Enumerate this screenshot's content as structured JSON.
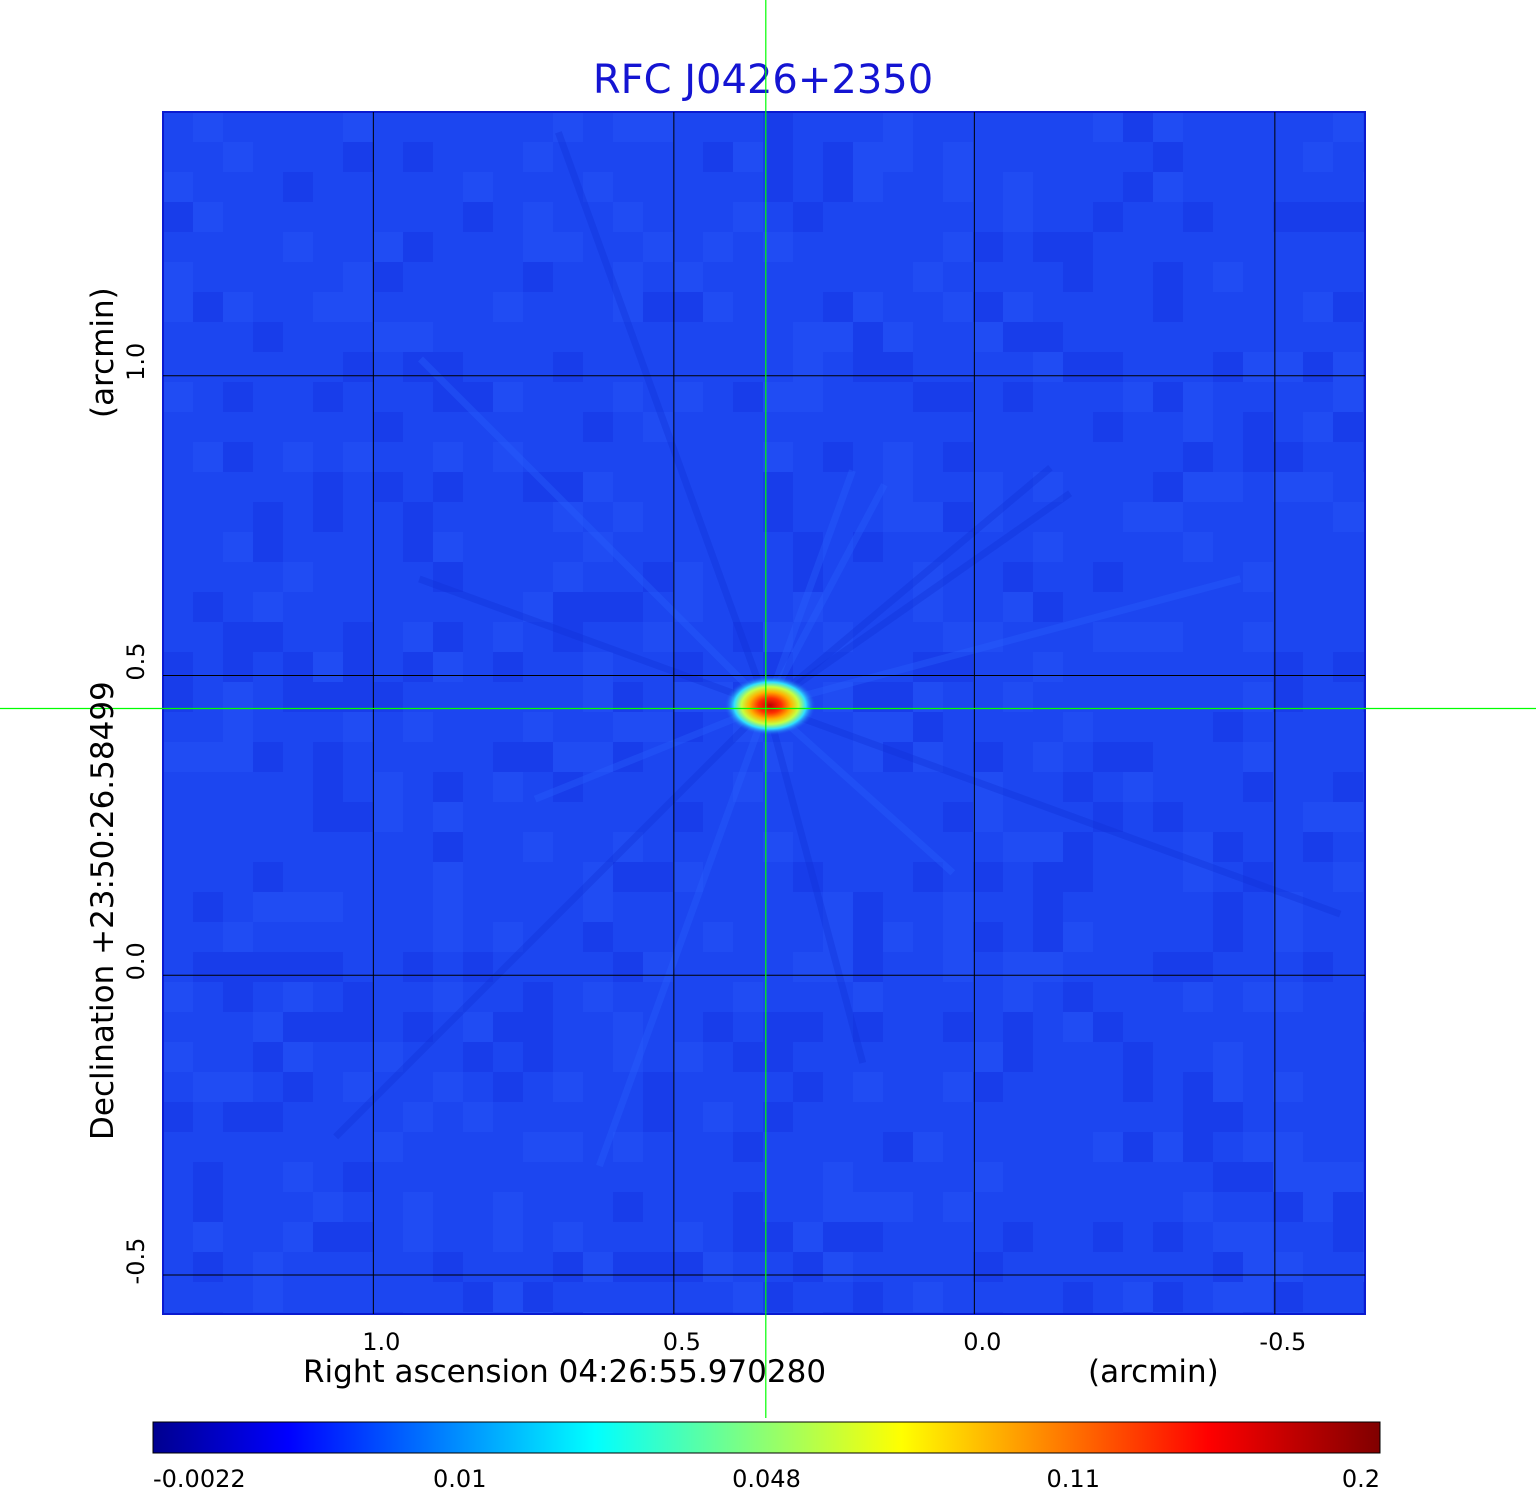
{
  "chart_data": {
    "type": "heatmap",
    "title": "RFC J0426+2350",
    "xlabel": "Right ascension  04:26:55.970280",
    "xunit": "(arcmin)",
    "ylabel": "Declination  +23:50:26.58499",
    "yunit": "(arcmin)",
    "xlim": [
      1.35,
      -0.65
    ],
    "ylim": [
      -0.565,
      1.44
    ],
    "x_ticks": [
      1.0,
      0.5,
      0.0,
      -0.5
    ],
    "x_tick_labels": [
      "1.0",
      "0.5",
      "0.0",
      "-0.5"
    ],
    "y_ticks": [
      1.0,
      0.5,
      0.0,
      -0.5
    ],
    "y_tick_labels": [
      "1.0",
      "0.5",
      "0.0",
      "-0.5"
    ],
    "grid": true,
    "crosshair": {
      "x": 0.347,
      "y": 0.445,
      "color": "#00ff00"
    },
    "peak": {
      "x": 0.345,
      "y": 0.45,
      "value": 0.2
    },
    "colormap": "jet",
    "colorbar": {
      "ticks": [
        -0.0022,
        0.01,
        0.048,
        0.11,
        0.2
      ],
      "tick_labels": [
        "-0.0022",
        "0.01",
        "0.048",
        "0.11",
        "0.2"
      ],
      "colors": [
        "#00008f",
        "#0000ff",
        "#00ffff",
        "#ffff00",
        "#ff0000",
        "#800000"
      ]
    },
    "colors": {
      "title": "#1414d2",
      "background": "#1c46f0",
      "grid": "#000000"
    }
  }
}
